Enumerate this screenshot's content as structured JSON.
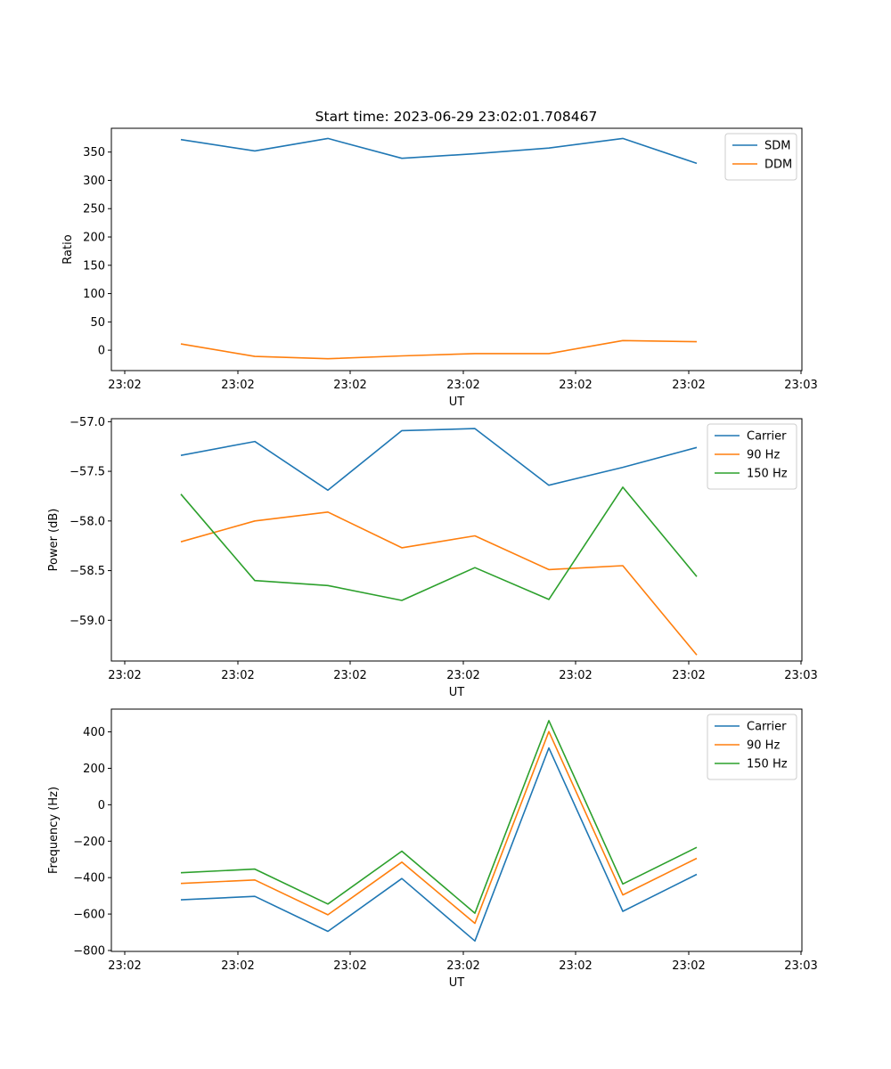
{
  "chart_data": [
    {
      "type": "line",
      "title": "Start time: 2023-06-29 23:02:01.708467",
      "xlabel": "UT",
      "ylabel": "Ratio",
      "x_tick_labels": [
        "23:02",
        "23:02",
        "23:02",
        "23:02",
        "23:02",
        "23:02",
        "23:03"
      ],
      "y_ticks": [
        0,
        50,
        100,
        150,
        200,
        250,
        300,
        350
      ],
      "ylim": [
        -36,
        392
      ],
      "legend_position": "upper-right",
      "series": [
        {
          "name": "SDM",
          "color": "#1f77b4",
          "values": [
            372,
            352,
            374,
            339,
            347,
            357,
            374,
            330
          ]
        },
        {
          "name": "DDM",
          "color": "#ff7f0e",
          "values": [
            11,
            -11,
            -15,
            -10,
            -6,
            -6,
            17,
            15
          ]
        }
      ]
    },
    {
      "type": "line",
      "title": "",
      "xlabel": "UT",
      "ylabel": "Power (dB)",
      "x_tick_labels": [
        "23:02",
        "23:02",
        "23:02",
        "23:02",
        "23:02",
        "23:02",
        "23:03"
      ],
      "y_ticks": [
        -59.0,
        -58.5,
        -58.0,
        -57.5,
        -57.0
      ],
      "ylim": [
        -59.41,
        -56.97
      ],
      "legend_position": "upper-right",
      "series": [
        {
          "name": "Carrier",
          "color": "#1f77b4",
          "values": [
            -57.34,
            -57.2,
            -57.69,
            -57.09,
            -57.07,
            -57.64,
            -57.46,
            -57.26
          ]
        },
        {
          "name": "90 Hz",
          "color": "#ff7f0e",
          "values": [
            -58.21,
            -58.0,
            -57.91,
            -58.27,
            -58.15,
            -58.49,
            -58.45,
            -59.35
          ]
        },
        {
          "name": "150 Hz",
          "color": "#2ca02c",
          "values": [
            -57.73,
            -58.6,
            -58.65,
            -58.8,
            -58.47,
            -58.79,
            -57.66,
            -58.56
          ]
        }
      ]
    },
    {
      "type": "line",
      "title": "",
      "xlabel": "UT",
      "ylabel": "Frequency (Hz)",
      "x_tick_labels": [
        "23:02",
        "23:02",
        "23:02",
        "23:02",
        "23:02",
        "23:02",
        "23:03"
      ],
      "y_ticks": [
        -800,
        -600,
        -400,
        -200,
        0,
        200,
        400
      ],
      "ylim": [
        -805,
        525
      ],
      "legend_position": "upper-right",
      "series": [
        {
          "name": "Carrier",
          "color": "#1f77b4",
          "values": [
            -522,
            -503,
            -695,
            -405,
            -748,
            312,
            -585,
            -382
          ]
        },
        {
          "name": "90 Hz",
          "color": "#ff7f0e",
          "values": [
            -432,
            -413,
            -604,
            -315,
            -651,
            402,
            -495,
            -294
          ]
        },
        {
          "name": "150 Hz",
          "color": "#2ca02c",
          "values": [
            -373,
            -353,
            -545,
            -255,
            -595,
            462,
            -435,
            -234
          ]
        }
      ]
    }
  ]
}
